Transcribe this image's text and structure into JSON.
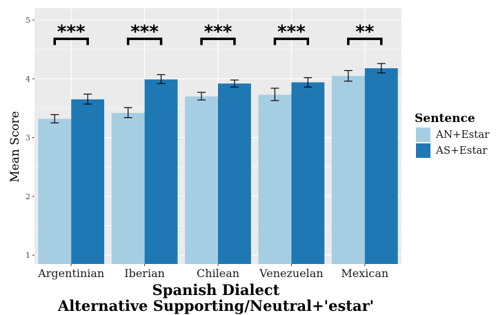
{
  "chart_data": {
    "type": "bar",
    "title": "",
    "xlabel": "Spanish Dialect",
    "xlabel_line2": "Alternative Supporting/Neutral+'estar'",
    "ylabel": "Mean Score",
    "ylim": [
      0.85,
      5.2
    ],
    "yticks": [
      1,
      2,
      3,
      4,
      5
    ],
    "grid": true,
    "legend": {
      "title": "Sentence",
      "placement": "right"
    },
    "categories": [
      "Argentinian",
      "Iberian",
      "Chilean",
      "Venezuelan",
      "Mexican"
    ],
    "series": [
      {
        "name": "AN+Estar",
        "color": "#a6cee3",
        "values": [
          3.32,
          3.42,
          3.7,
          3.73,
          4.05
        ],
        "err_low": [
          3.25,
          3.34,
          3.64,
          3.63,
          3.96
        ],
        "err_high": [
          3.39,
          3.51,
          3.77,
          3.84,
          4.14
        ]
      },
      {
        "name": "AS+Estar",
        "color": "#1f78b4",
        "values": [
          3.65,
          3.99,
          3.92,
          3.94,
          4.18
        ],
        "err_low": [
          3.57,
          3.92,
          3.86,
          3.86,
          4.1
        ],
        "err_high": [
          3.74,
          4.07,
          3.98,
          4.02,
          4.26
        ]
      }
    ],
    "significance": [
      "***",
      "***",
      "***",
      "***",
      "**"
    ],
    "significance_level": 4.68
  }
}
